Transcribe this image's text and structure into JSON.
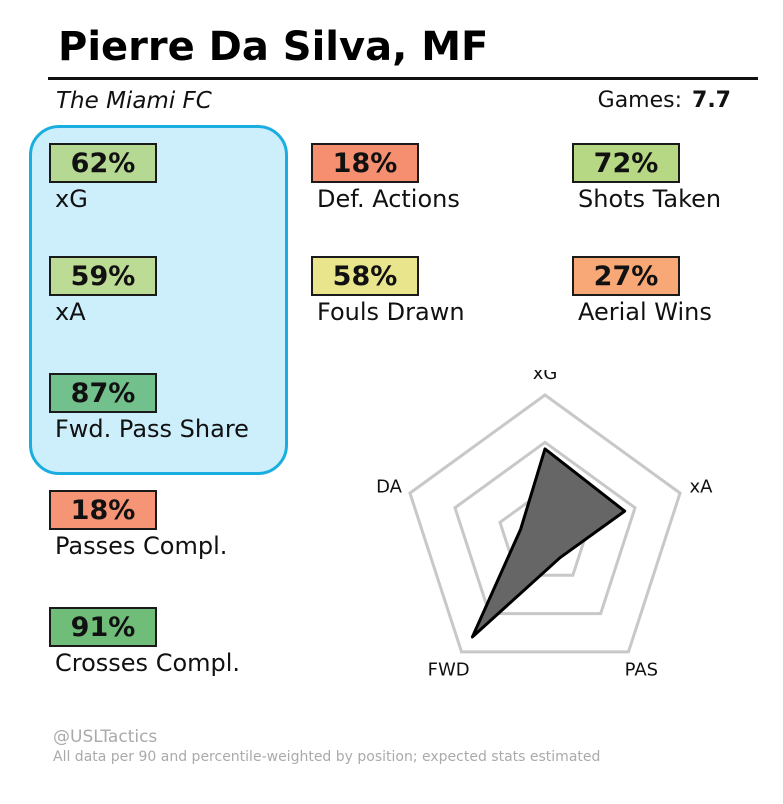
{
  "header": {
    "title": "Pierre Da Silva, MF",
    "team": "The Miami FC",
    "games_label": "Games:",
    "games_value": "7.7"
  },
  "stats": [
    {
      "value": "62%",
      "label": "xG",
      "color": "#b5d993"
    },
    {
      "value": "59%",
      "label": "xA",
      "color": "#bcdb95"
    },
    {
      "value": "87%",
      "label": "Fwd. Pass Share",
      "color": "#72c08c"
    },
    {
      "value": "18%",
      "label": "Passes Compl.",
      "color": "#f59575"
    },
    {
      "value": "91%",
      "label": "Crosses Compl.",
      "color": "#6fbd79"
    },
    {
      "value": "18%",
      "label": "Def. Actions",
      "color": "#f68f6f"
    },
    {
      "value": "58%",
      "label": "Fouls Drawn",
      "color": "#e8e58c"
    },
    {
      "value": "72%",
      "label": "Shots Taken",
      "color": "#b6d884"
    },
    {
      "value": "27%",
      "label": "Aerial Wins",
      "color": "#f8a877"
    }
  ],
  "chart_data": {
    "type": "radar",
    "axes": [
      "xG",
      "xA",
      "PAS",
      "FWD",
      "DA"
    ],
    "values": [
      0.62,
      0.59,
      0.18,
      0.87,
      0.18
    ],
    "range": [
      0,
      1
    ],
    "rings": 3,
    "fill_color": "#666666",
    "grid_color": "#c8c8c8"
  },
  "footer": {
    "credit": "@USLTactics",
    "note": "All data per 90 and percentile-weighted by position; expected stats estimated"
  }
}
